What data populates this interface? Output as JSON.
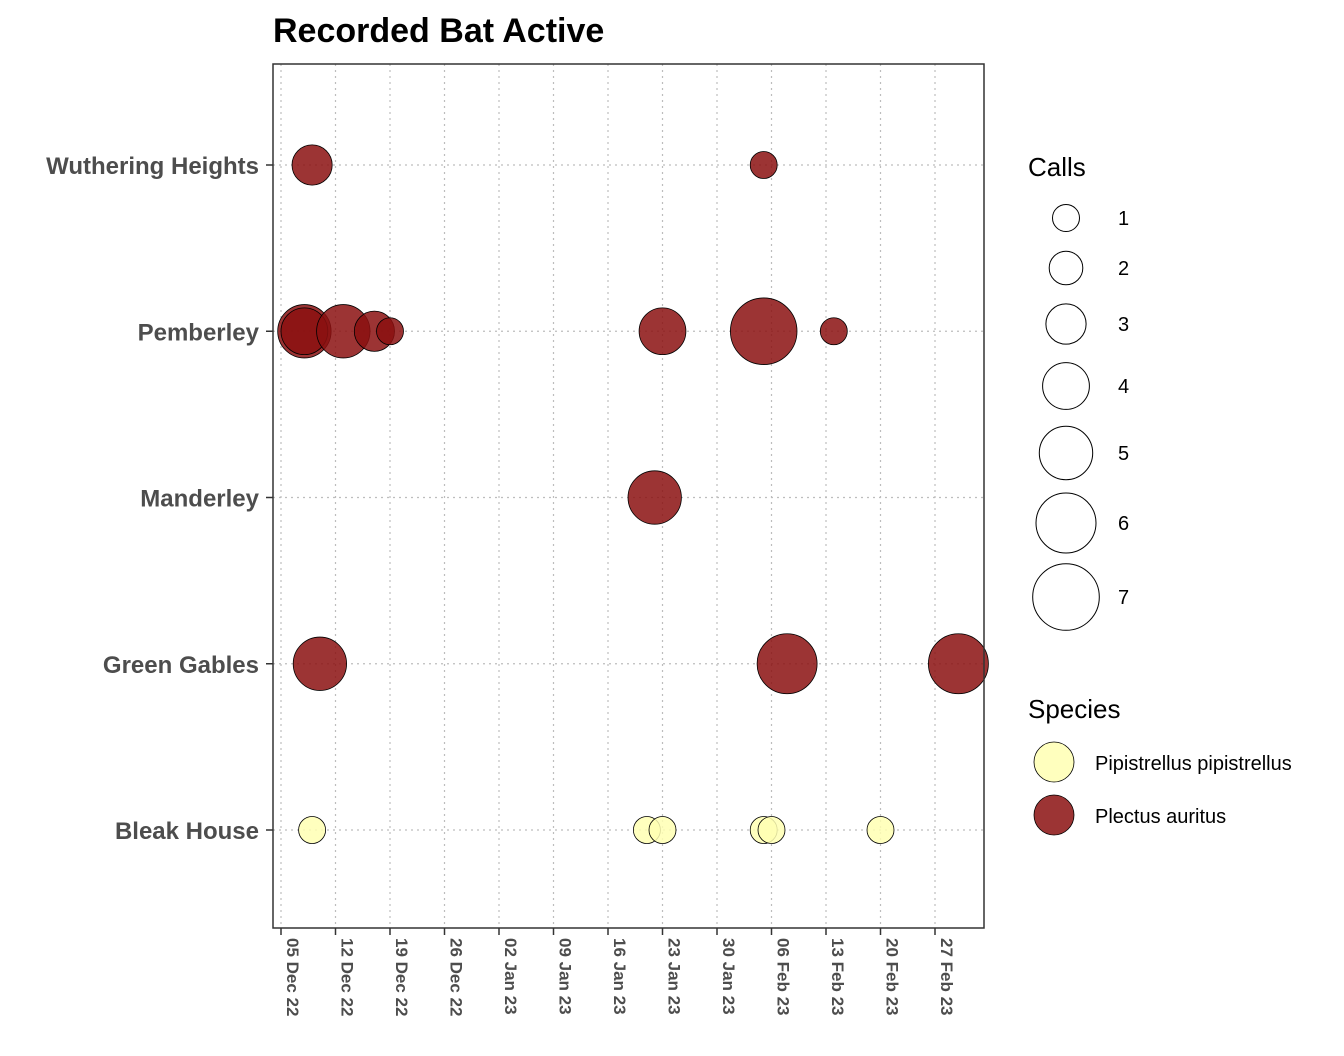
{
  "chart_data": {
    "type": "scatter",
    "title": "Recorded Bat  Active",
    "xlabel": "",
    "ylabel": "",
    "sites": [
      "Wuthering Heights",
      "Pemberley",
      "Manderley",
      "Green Gables",
      "Bleak House"
    ],
    "x_ticks": [
      "05 Dec 22",
      "12 Dec 22",
      "19 Dec 22",
      "26 Dec 22",
      "02 Jan 23",
      "09 Jan 23",
      "16 Jan 23",
      "23 Jan 23",
      "30 Jan 23",
      "06 Feb 23",
      "13 Feb 23",
      "20 Feb 23",
      "27 Feb 23"
    ],
    "xlim": [
      "2022-12-03",
      "2023-03-08"
    ],
    "grid": true,
    "legend_placement": "right",
    "size_legend": {
      "title": "Calls",
      "values": [
        1,
        2,
        3,
        4,
        5,
        6,
        7
      ]
    },
    "color_legend": {
      "title": "Species",
      "entries": [
        "Pipistrellus pipistrellus",
        "Plectus auritus"
      ]
    },
    "colors": {
      "Pipistrellus pipistrellus": "#ffffb3",
      "Plectus auritus": "#8b1010"
    },
    "points": [
      {
        "site": "Wuthering Heights",
        "date": "2022-12-09",
        "species": "Plectus auritus",
        "calls": 3
      },
      {
        "site": "Wuthering Heights",
        "date": "2023-02-05",
        "species": "Plectus auritus",
        "calls": 1
      },
      {
        "site": "Pemberley",
        "date": "2022-12-08",
        "species": "Plectus auritus",
        "calls": 5
      },
      {
        "site": "Pemberley",
        "date": "2022-12-08",
        "species": "Plectus auritus",
        "calls": 4
      },
      {
        "site": "Pemberley",
        "date": "2022-12-13",
        "species": "Plectus auritus",
        "calls": 5
      },
      {
        "site": "Pemberley",
        "date": "2022-12-17",
        "species": "Plectus auritus",
        "calls": 3
      },
      {
        "site": "Pemberley",
        "date": "2022-12-19",
        "species": "Plectus auritus",
        "calls": 1
      },
      {
        "site": "Pemberley",
        "date": "2023-01-23",
        "species": "Plectus auritus",
        "calls": 4
      },
      {
        "site": "Pemberley",
        "date": "2023-02-05",
        "species": "Plectus auritus",
        "calls": 7
      },
      {
        "site": "Pemberley",
        "date": "2023-02-14",
        "species": "Plectus auritus",
        "calls": 1
      },
      {
        "site": "Manderley",
        "date": "2023-01-22",
        "species": "Plectus auritus",
        "calls": 5
      },
      {
        "site": "Green Gables",
        "date": "2022-12-10",
        "species": "Plectus auritus",
        "calls": 5
      },
      {
        "site": "Green Gables",
        "date": "2023-02-08",
        "species": "Plectus auritus",
        "calls": 6
      },
      {
        "site": "Green Gables",
        "date": "2023-03-02",
        "species": "Plectus auritus",
        "calls": 6
      },
      {
        "site": "Bleak House",
        "date": "2022-12-09",
        "species": "Pipistrellus pipistrellus",
        "calls": 1
      },
      {
        "site": "Bleak House",
        "date": "2023-01-21",
        "species": "Pipistrellus pipistrellus",
        "calls": 1
      },
      {
        "site": "Bleak House",
        "date": "2023-01-23",
        "species": "Pipistrellus pipistrellus",
        "calls": 1
      },
      {
        "site": "Bleak House",
        "date": "2023-02-05",
        "species": "Pipistrellus pipistrellus",
        "calls": 1
      },
      {
        "site": "Bleak House",
        "date": "2023-02-06",
        "species": "Pipistrellus pipistrellus",
        "calls": 1
      },
      {
        "site": "Bleak House",
        "date": "2023-02-20",
        "species": "Pipistrellus pipistrellus",
        "calls": 1
      }
    ]
  }
}
